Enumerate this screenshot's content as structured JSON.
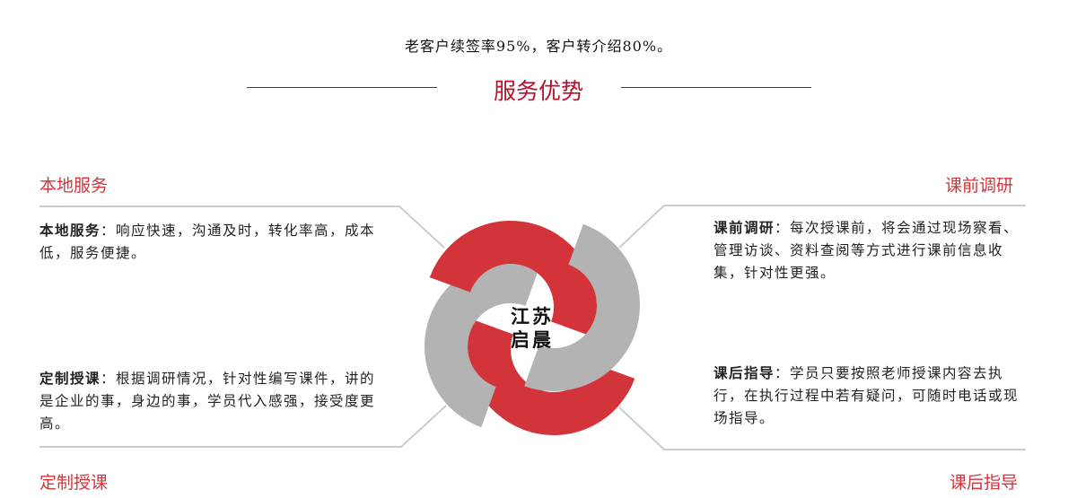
{
  "tagline": "老客户续签率95%，客户转介绍80%。",
  "section_title": "服务优势",
  "center_label": {
    "line1": "江苏",
    "line2": "启晨"
  },
  "colors": {
    "accent_red": "#d2343a",
    "ring_gray": "#b3b3b3",
    "title_red": "#b5122e"
  },
  "features": {
    "local": {
      "heading": "本地服务",
      "label": "本地服务",
      "text": "：响应快速，沟通及时，转化率高，成本低，服务便捷。"
    },
    "custom": {
      "heading": "定制授课",
      "label": "定制授课",
      "text": "：根据调研情况，针对性编写课件，讲的是企业的事，身边的事，学员代入感强，接受度更高。"
    },
    "research": {
      "heading": "课前调研",
      "label": "课前调研",
      "text": "：每次授课前，将会通过现场察看、管理访谈、资料查阅等方式进行课前信息收集，针对性更强。"
    },
    "guidance": {
      "heading": "课后指导",
      "label": "课后指导",
      "text": "：学员只要按照老师授课内容去执行，在执行过程中若有疑问，可随时电话或现场指导。"
    }
  }
}
